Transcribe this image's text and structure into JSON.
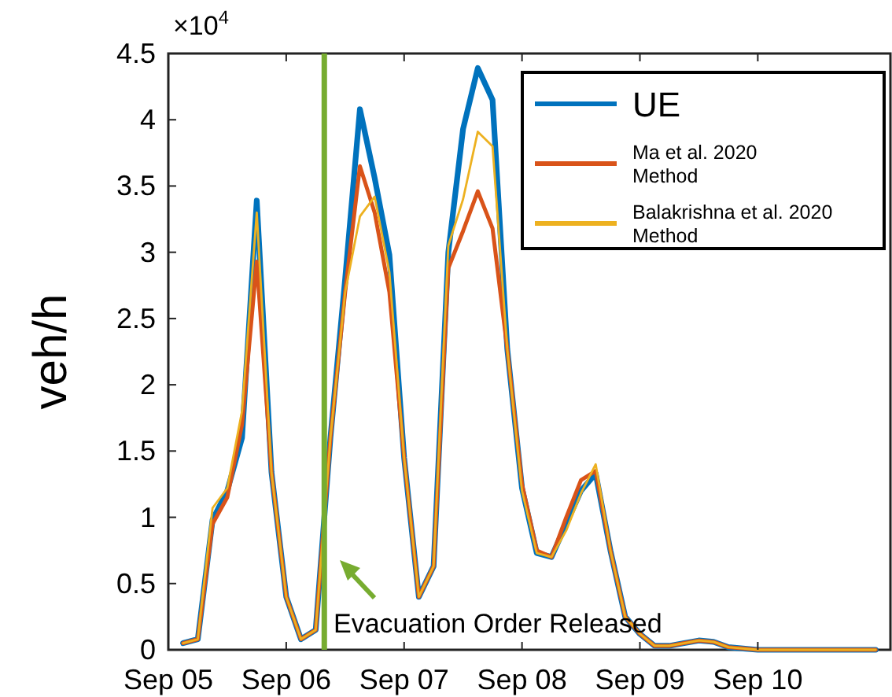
{
  "chart_data": {
    "type": "line",
    "ylabel": "veh/h",
    "x": [
      "--09-05T03:00",
      "--09-05T06:00",
      "--09-05T09:00",
      "--09-05T12:00",
      "--09-05T15:00",
      "--09-05T18:00",
      "--09-05T21:00",
      "--09-06T00:00",
      "--09-06T03:00",
      "--09-06T06:00",
      "--09-06T09:00",
      "--09-06T12:00",
      "--09-06T15:00",
      "--09-06T18:00",
      "--09-06T21:00",
      "--09-07T00:00",
      "--09-07T03:00",
      "--09-07T06:00",
      "--09-07T09:00",
      "--09-07T12:00",
      "--09-07T15:00",
      "--09-07T18:00",
      "--09-07T21:00",
      "--09-08T00:00",
      "--09-08T03:00",
      "--09-08T06:00",
      "--09-08T09:00",
      "--09-08T12:00",
      "--09-08T15:00",
      "--09-08T18:00",
      "--09-08T21:00",
      "--09-09T00:00",
      "--09-09T03:00",
      "--09-09T06:00",
      "--09-09T09:00",
      "--09-09T12:00",
      "--09-09T15:00",
      "--09-09T18:00",
      "--09-09T21:00",
      "--09-10T00:00",
      "--09-10T03:00",
      "--09-10T06:00",
      "--09-10T09:00",
      "--09-10T12:00",
      "--09-10T15:00",
      "--09-10T18:00",
      "--09-10T21:00",
      "--09-11T00:00"
    ],
    "series": [
      {
        "name": "UE",
        "color": "#0072bd",
        "values": [
          0.05,
          0.08,
          0.98,
          1.2,
          1.6,
          3.39,
          1.34,
          0.4,
          0.08,
          0.15,
          1.6,
          2.8,
          4.08,
          3.56,
          2.98,
          1.45,
          0.4,
          0.63,
          3.0,
          3.93,
          4.39,
          4.15,
          2.27,
          1.22,
          0.73,
          0.7,
          0.95,
          1.2,
          1.33,
          0.75,
          0.25,
          0.12,
          0.03,
          0.03,
          0.05,
          0.07,
          0.06,
          0.02,
          0.01,
          0,
          0,
          0,
          0,
          0,
          0,
          0,
          0,
          0
        ]
      },
      {
        "name": "Ma et al. 2020 Method",
        "color": "#d95319",
        "values": [
          0.05,
          0.08,
          0.95,
          1.15,
          1.7,
          2.93,
          1.34,
          0.4,
          0.08,
          0.15,
          1.6,
          2.7,
          3.65,
          3.3,
          2.7,
          1.45,
          0.4,
          0.63,
          2.88,
          3.16,
          3.46,
          3.18,
          2.27,
          1.25,
          0.75,
          0.7,
          1.0,
          1.28,
          1.35,
          0.75,
          0.25,
          0.12,
          0.03,
          0.03,
          0.05,
          0.07,
          0.06,
          0.02,
          0.01,
          0,
          0,
          0,
          0,
          0,
          0,
          0,
          0,
          0
        ]
      },
      {
        "name": "Balakrishna et al. 2020 Method",
        "color": "#edb120",
        "values": [
          0.05,
          0.08,
          1.07,
          1.22,
          1.8,
          3.3,
          1.34,
          0.4,
          0.08,
          0.15,
          1.6,
          2.7,
          3.27,
          3.42,
          2.85,
          1.45,
          0.4,
          0.63,
          3.05,
          3.4,
          3.91,
          3.8,
          2.27,
          1.2,
          0.73,
          0.7,
          0.9,
          1.18,
          1.4,
          0.75,
          0.25,
          0.12,
          0.03,
          0.03,
          0.05,
          0.07,
          0.06,
          0.02,
          0.01,
          0,
          0,
          0,
          0,
          0,
          0,
          0,
          0,
          0
        ]
      }
    ],
    "xlim": [
      "--09-05T00:00",
      "--09-11T03:00"
    ],
    "xticks": [
      {
        "value": "--09-05",
        "label": "Sep 05"
      },
      {
        "value": "--09-06",
        "label": "Sep 06"
      },
      {
        "value": "--09-07",
        "label": "Sep 07"
      },
      {
        "value": "--09-08",
        "label": "Sep 08"
      },
      {
        "value": "--09-09",
        "label": "Sep 09"
      },
      {
        "value": "--09-10",
        "label": "Sep 10"
      }
    ],
    "ylim": [
      0,
      4.5
    ],
    "yticks": [
      0,
      0.5,
      1,
      1.5,
      2,
      2.5,
      3,
      3.5,
      4,
      4.5
    ],
    "ref_lines": [
      {
        "axis": "x",
        "value": "--09-06T07:45",
        "color": "#77ac30"
      }
    ],
    "annotations": [
      "×10$^{4}$",
      "Evacuation Order Released"
    ],
    "legend": "top right",
    "grid": false,
    "marker": "none",
    "line_style": "solid"
  }
}
